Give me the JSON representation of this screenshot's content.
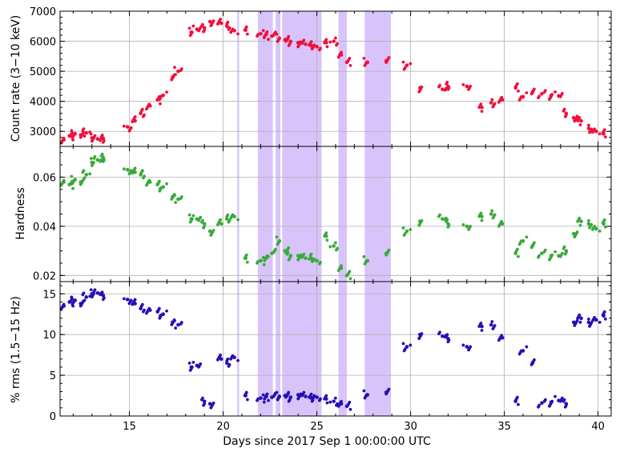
{
  "colors": {
    "count_rate": "#f0103c",
    "hardness": "#3aaa3a",
    "rms": "#2410b8",
    "shade": "#d8c4fb",
    "grid": "#b0b0b0"
  },
  "chart_data": [
    {
      "type": "scatter",
      "panel": "top",
      "ylabel": "Count rate (3−10 keV)",
      "xlim": [
        11.3,
        40.7
      ],
      "ylim": [
        2500,
        7000
      ],
      "yticks": [
        3000,
        4000,
        5000,
        6000,
        7000
      ],
      "x": [
        11.5,
        11.8,
        12.1,
        12.4,
        12.7,
        13.0,
        13.3,
        13.6,
        14.9,
        15.3,
        15.6,
        16.1,
        16.5,
        16.8,
        17.3,
        17.6,
        18.3,
        18.6,
        19.0,
        19.3,
        19.9,
        20.2,
        20.6,
        21.2,
        22.0,
        22.3,
        22.6,
        23.0,
        23.3,
        23.6,
        24.0,
        24.4,
        24.7,
        25.0,
        25.5,
        25.9,
        26.3,
        26.6,
        27.7,
        28.7,
        29.8,
        30.5,
        31.7,
        32.0,
        33.0,
        33.8,
        34.3,
        34.9,
        35.6,
        36.0,
        36.5,
        37.0,
        37.5,
        37.9,
        38.3,
        38.7,
        39.1,
        39.5,
        39.9,
        40.3
      ],
      "y": [
        2720,
        2850,
        2920,
        2880,
        2950,
        2780,
        2750,
        2770,
        3150,
        3350,
        3600,
        3850,
        4050,
        4200,
        4800,
        5000,
        6300,
        6400,
        6450,
        6650,
        6600,
        6500,
        6350,
        6370,
        6250,
        6230,
        6170,
        6100,
        6050,
        5990,
        5950,
        5900,
        5850,
        5820,
        5950,
        6000,
        5550,
        5300,
        5300,
        5350,
        5200,
        4450,
        4400,
        4500,
        4500,
        3800,
        3950,
        4050,
        4450,
        4150,
        4300,
        4250,
        4200,
        4180,
        3600,
        3450,
        3350,
        3100,
        3000,
        2920
      ],
      "shaded_regions": [
        [
          20.75,
          20.85
        ],
        [
          21.85,
          22.65
        ],
        [
          22.8,
          23.05
        ],
        [
          23.15,
          25.25
        ],
        [
          26.15,
          26.6
        ],
        [
          27.55,
          28.95
        ]
      ]
    },
    {
      "type": "scatter",
      "panel": "middle",
      "ylabel": "Hardness",
      "xlim": [
        11.3,
        40.7
      ],
      "ylim": [
        0.0175,
        0.0725
      ],
      "yticks": [
        0.02,
        0.04,
        0.06
      ],
      "ytick_labels": [
        "0.02",
        "0.04",
        "0.06"
      ],
      "x": [
        11.5,
        11.8,
        12.1,
        12.4,
        12.7,
        13.0,
        13.3,
        13.6,
        14.9,
        15.3,
        15.6,
        16.1,
        16.5,
        16.8,
        17.3,
        17.6,
        18.3,
        18.6,
        19.0,
        19.3,
        19.9,
        20.2,
        20.6,
        21.2,
        22.0,
        22.3,
        22.6,
        23.0,
        23.3,
        23.6,
        24.0,
        24.4,
        24.7,
        25.0,
        25.5,
        25.9,
        26.3,
        26.6,
        27.7,
        28.7,
        29.8,
        30.5,
        31.7,
        32.0,
        33.0,
        33.8,
        34.3,
        34.9,
        35.6,
        36.0,
        36.5,
        37.0,
        37.5,
        37.9,
        38.3,
        38.7,
        39.1,
        39.5,
        39.9,
        40.3
      ],
      "y": [
        0.058,
        0.057,
        0.059,
        0.058,
        0.061,
        0.066,
        0.067,
        0.068,
        0.063,
        0.062,
        0.061,
        0.058,
        0.057,
        0.056,
        0.052,
        0.051,
        0.043,
        0.043,
        0.041,
        0.038,
        0.041,
        0.043,
        0.044,
        0.027,
        0.026,
        0.027,
        0.029,
        0.034,
        0.03,
        0.028,
        0.028,
        0.027,
        0.027,
        0.026,
        0.036,
        0.032,
        0.023,
        0.02,
        0.026,
        0.029,
        0.038,
        0.042,
        0.043,
        0.041,
        0.04,
        0.044,
        0.045,
        0.041,
        0.029,
        0.034,
        0.032,
        0.029,
        0.028,
        0.028,
        0.03,
        0.037,
        0.042,
        0.041,
        0.039,
        0.041
      ],
      "shaded_regions": [
        [
          20.75,
          20.85
        ],
        [
          21.85,
          22.65
        ],
        [
          22.8,
          23.05
        ],
        [
          23.15,
          25.25
        ],
        [
          26.15,
          26.6
        ],
        [
          27.55,
          28.95
        ]
      ]
    },
    {
      "type": "scatter",
      "panel": "bottom",
      "ylabel": "% rms (1.5−15 Hz)",
      "xlabel": "Days since 2017 Sep 1 00:00:00 UTC",
      "xlim": [
        11.3,
        40.7
      ],
      "ylim": [
        0,
        16.5
      ],
      "yticks": [
        0,
        5,
        10,
        15
      ],
      "xticks": [
        15,
        20,
        25,
        30,
        35,
        40
      ],
      "x": [
        11.5,
        11.8,
        12.1,
        12.4,
        12.7,
        13.0,
        13.3,
        13.6,
        14.9,
        15.3,
        15.6,
        16.1,
        16.5,
        16.8,
        17.3,
        17.6,
        18.3,
        18.6,
        19.0,
        19.3,
        19.9,
        20.2,
        20.6,
        21.2,
        22.0,
        22.3,
        22.6,
        23.0,
        23.3,
        23.6,
        24.0,
        24.4,
        24.7,
        25.0,
        25.5,
        25.9,
        26.3,
        26.6,
        27.7,
        28.7,
        29.8,
        30.5,
        31.7,
        32.0,
        33.0,
        33.8,
        34.3,
        34.9,
        35.6,
        36.0,
        36.5,
        37.0,
        37.5,
        37.9,
        38.3,
        38.7,
        39.1,
        39.5,
        39.9,
        40.3
      ],
      "y": [
        13.5,
        14.0,
        14.2,
        13.8,
        14.6,
        15.0,
        15.1,
        14.8,
        14.3,
        13.8,
        13.2,
        13.0,
        12.8,
        12.5,
        11.5,
        11.2,
        6.0,
        6.2,
        1.8,
        1.5,
        7.0,
        6.5,
        7.2,
        2.5,
        2.2,
        2.4,
        2.3,
        2.4,
        2.5,
        2.3,
        2.6,
        2.4,
        2.2,
        2.3,
        2.1,
        1.8,
        1.5,
        1.2,
        2.6,
        2.9,
        8.5,
        10.0,
        9.8,
        9.5,
        8.5,
        11.0,
        11.2,
        9.6,
        1.8,
        8.0,
        6.5,
        1.6,
        1.7,
        1.9,
        1.5,
        11.5,
        12.0,
        11.5,
        11.8,
        12.3
      ],
      "shaded_regions": [
        [
          20.75,
          20.85
        ],
        [
          21.85,
          22.65
        ],
        [
          22.8,
          23.05
        ],
        [
          23.15,
          25.25
        ],
        [
          26.15,
          26.6
        ],
        [
          27.55,
          28.95
        ]
      ]
    }
  ]
}
